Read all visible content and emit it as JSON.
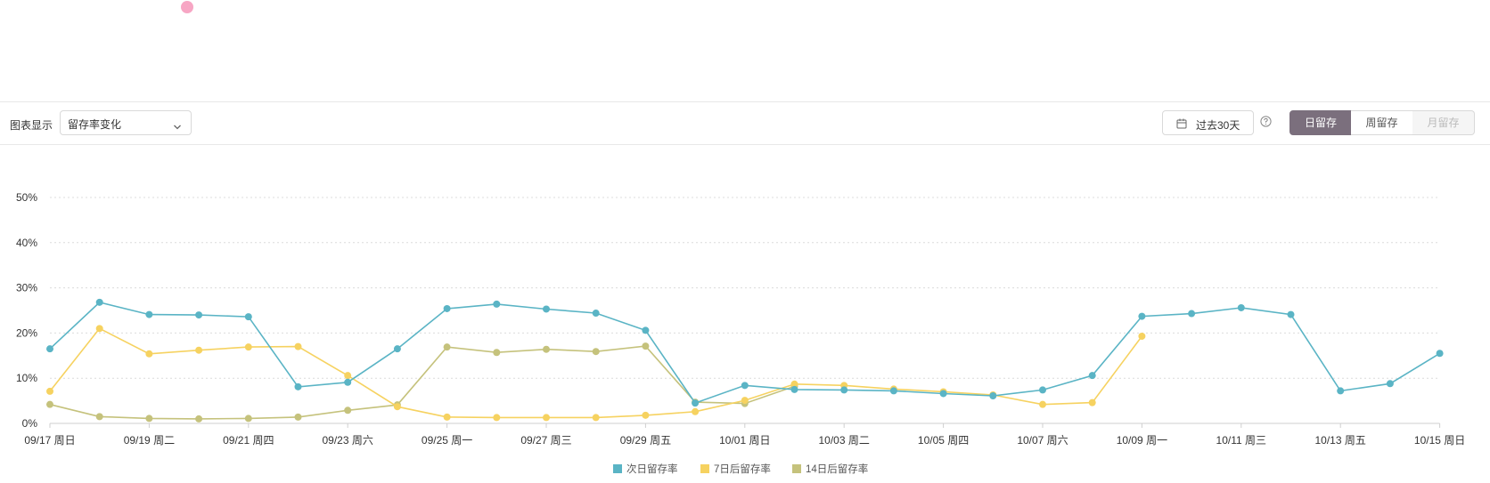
{
  "toolbar": {
    "chart_display_label": "图表显示",
    "chart_select_value": "留存率变化",
    "date_range_label": "过去30天",
    "tabs": [
      {
        "label": "日留存",
        "state": "active"
      },
      {
        "label": "周留存",
        "state": "normal"
      },
      {
        "label": "月留存",
        "state": "disabled"
      }
    ]
  },
  "colors": {
    "series1": "#5ab4c5",
    "series2": "#f6d260",
    "series3": "#c5c27c",
    "accent": "#7b6f7d",
    "decor_dot": "#f7a6c4"
  },
  "chart_data": {
    "type": "line",
    "y_ticks": [
      "0%",
      "10%",
      "20%",
      "30%",
      "40%",
      "50%"
    ],
    "ylim": [
      0,
      50
    ],
    "grid": true,
    "legend_position": "bottom-center",
    "x": [
      "09/17 周日",
      "09/18",
      "09/19 周二",
      "09/20",
      "09/21 周四",
      "09/22",
      "09/23 周六",
      "09/24",
      "09/25 周一",
      "09/26",
      "09/27 周三",
      "09/28",
      "09/29 周五",
      "09/30",
      "10/01 周日",
      "10/02",
      "10/03 周二",
      "10/04",
      "10/05 周四",
      "10/06",
      "10/07 周六",
      "10/08",
      "10/09 周一",
      "10/10",
      "10/11 周三",
      "10/12",
      "10/13 周五",
      "10/14",
      "10/15 周日"
    ],
    "x_tick_labels": [
      "09/17 周日",
      "09/19 周二",
      "09/21 周四",
      "09/23 周六",
      "09/25 周一",
      "09/27 周三",
      "09/29 周五",
      "10/01 周日",
      "10/03 周二",
      "10/05 周四",
      "10/07 周六",
      "10/09 周一",
      "10/11 周三",
      "10/13 周五",
      "10/15 周日"
    ],
    "series": [
      {
        "name": "次日留存率",
        "values": [
          16.5,
          26.8,
          24.1,
          24.0,
          23.6,
          8.1,
          9.1,
          16.5,
          25.4,
          26.4,
          25.3,
          24.4,
          20.6,
          4.5,
          8.4,
          7.5,
          7.4,
          7.2,
          6.6,
          6.1,
          7.4,
          10.6,
          23.7,
          24.3,
          25.6,
          24.1,
          7.2,
          8.8,
          15.5
        ]
      },
      {
        "name": "7日后留存率",
        "values": [
          7.1,
          21.0,
          15.4,
          16.2,
          16.9,
          17.0,
          10.6,
          3.7,
          1.4,
          1.3,
          1.3,
          1.3,
          1.8,
          2.6,
          5.1,
          8.7,
          8.4,
          7.6,
          7.0,
          6.3,
          4.2,
          4.6,
          19.3,
          null,
          null,
          null,
          null,
          null,
          null
        ]
      },
      {
        "name": "14日后留存率",
        "values": [
          4.2,
          1.5,
          1.1,
          1.0,
          1.1,
          1.4,
          2.9,
          4.1,
          16.9,
          15.7,
          16.4,
          15.9,
          17.1,
          4.7,
          4.4,
          8.2,
          null,
          null,
          null,
          null,
          null,
          null,
          null,
          null,
          null,
          null,
          null,
          null,
          null
        ]
      }
    ]
  }
}
